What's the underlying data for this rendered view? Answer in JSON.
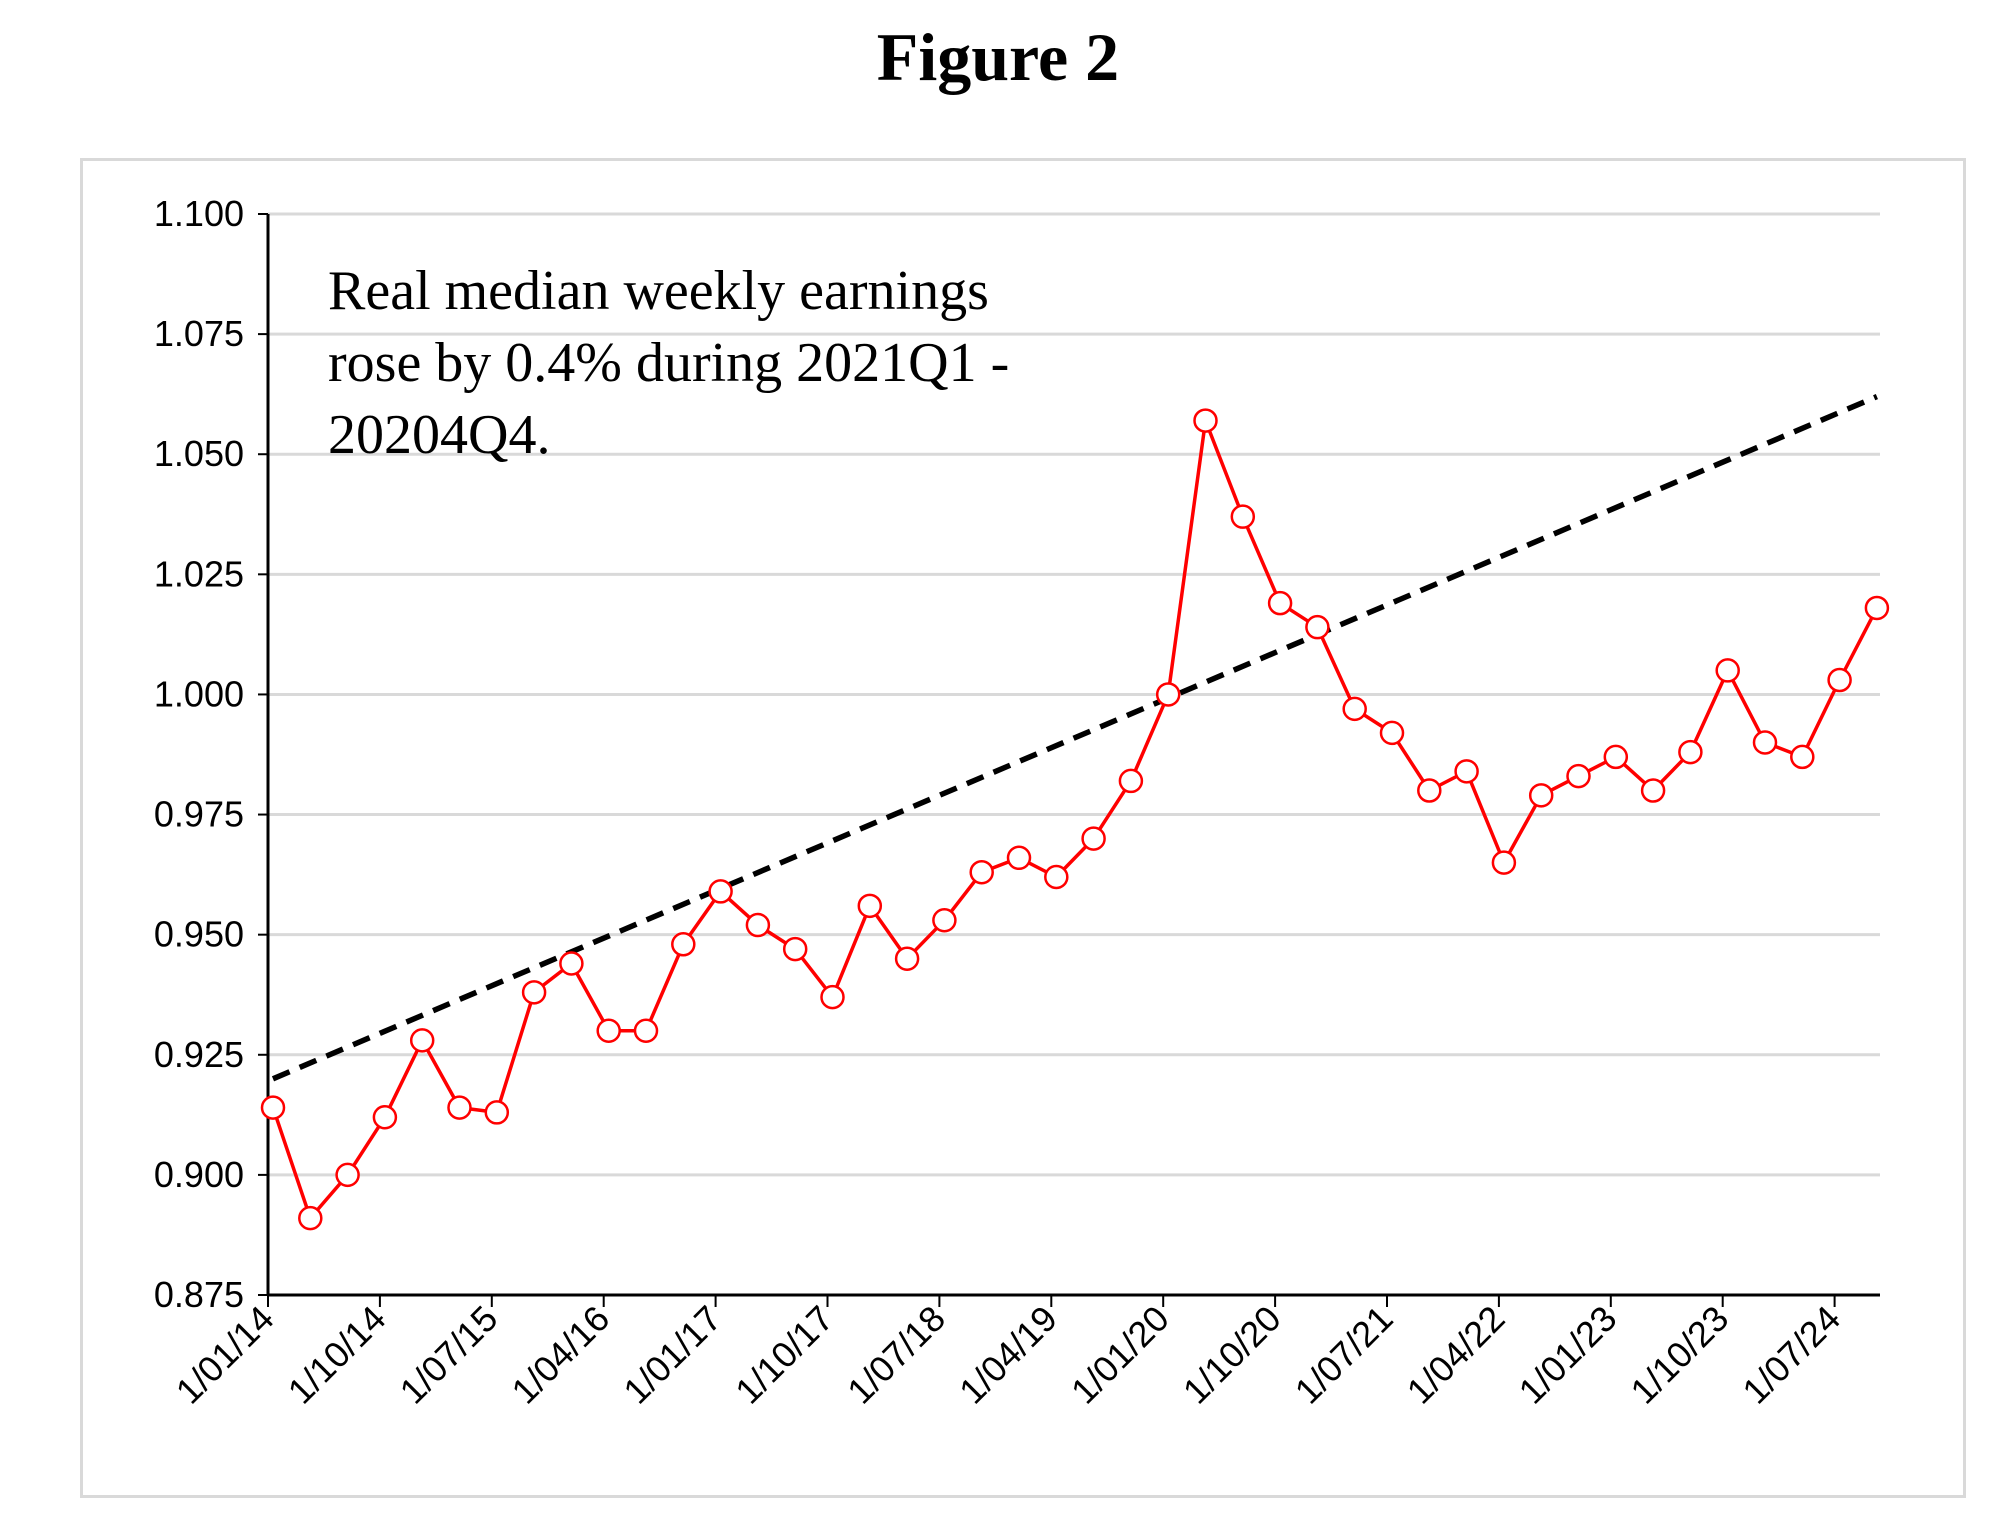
{
  "figure_title": "Figure 2",
  "chart_data": {
    "type": "line",
    "ylim": [
      0.875,
      1.1
    ],
    "y_ticks": [
      "1.100",
      "1.075",
      "1.050",
      "1.025",
      "1.000",
      "0.975",
      "0.950",
      "0.925",
      "0.900",
      "0.875"
    ],
    "y_tick_values": [
      1.1,
      1.075,
      1.05,
      1.025,
      1.0,
      0.975,
      0.95,
      0.925,
      0.9,
      0.875
    ],
    "x_tick_labels": [
      "1/01/14",
      "1/10/14",
      "1/07/15",
      "1/04/16",
      "1/01/17",
      "1/10/17",
      "1/07/18",
      "1/04/19",
      "1/01/20",
      "1/10/20",
      "1/07/21",
      "1/04/22",
      "1/01/23",
      "1/10/23",
      "1/07/24"
    ],
    "grid": true,
    "annotation": [
      "Real median weekly earnings",
      "rose by 0.4% during 2021Q1 -",
      "20204Q4."
    ],
    "series": [
      {
        "color": "#ff0000",
        "marker": "open-circle",
        "values": [
          0.914,
          0.891,
          0.9,
          0.912,
          0.928,
          0.914,
          0.913,
          0.938,
          0.944,
          0.93,
          0.93,
          0.948,
          0.959,
          0.952,
          0.947,
          0.937,
          0.956,
          0.945,
          0.953,
          0.963,
          0.966,
          0.962,
          0.97,
          0.982,
          1.0,
          1.057,
          1.037,
          1.019,
          1.014,
          0.997,
          0.992,
          0.98,
          0.984,
          0.965,
          0.979,
          0.983,
          0.987,
          0.98,
          0.988,
          1.005,
          0.99,
          0.987,
          1.003,
          1.018
        ]
      },
      {
        "color": "#000000",
        "style": "dashed",
        "start": 0.92,
        "end": 1.062
      }
    ]
  }
}
